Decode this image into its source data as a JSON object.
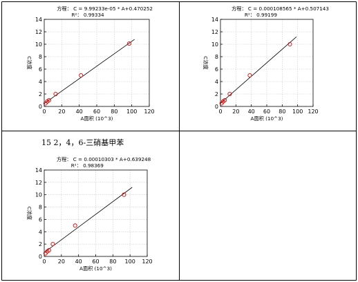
{
  "caption": "15  2，4，6-三硝基甲苯",
  "chart_data": [
    {
      "type": "scatter",
      "equation": "方程： C = 9.99233e-05 * A+0.470252",
      "r2": "R²： 0.99334",
      "xlabel": "A面积 (10^3)",
      "ylabel": "C浓度",
      "xlim": [
        0,
        120
      ],
      "ylim": [
        0,
        14
      ],
      "xticks": [
        "0",
        "20",
        "40",
        "60",
        "80",
        "100",
        "120"
      ],
      "yticks": [
        "0",
        "2",
        "4",
        "6",
        "8",
        "10",
        "12",
        "14"
      ],
      "points": [
        {
          "x": 1.5,
          "y": 0.5
        },
        {
          "x": 3.5,
          "y": 0.8
        },
        {
          "x": 5.5,
          "y": 1.0
        },
        {
          "x": 13,
          "y": 2.0
        },
        {
          "x": 42,
          "y": 5.0
        },
        {
          "x": 97,
          "y": 10.1
        }
      ],
      "fit": {
        "slope": 0.0999233,
        "intercept": 0.470252
      },
      "grid": true
    },
    {
      "type": "scatter",
      "equation": "方程： C = 0.000108565 * A+0.507143",
      "r2": "R²： 0.99199",
      "xlabel": "A面积 (10^3)",
      "ylabel": "C浓度",
      "xlim": [
        0,
        120
      ],
      "ylim": [
        0,
        14
      ],
      "xticks": [
        "0",
        "20",
        "40",
        "60",
        "80",
        "100",
        "120"
      ],
      "yticks": [
        "0",
        "2",
        "4",
        "6",
        "8",
        "10",
        "12",
        "14"
      ],
      "points": [
        {
          "x": 1.5,
          "y": 0.5
        },
        {
          "x": 3.5,
          "y": 0.8
        },
        {
          "x": 5.5,
          "y": 1.0
        },
        {
          "x": 12,
          "y": 2.0
        },
        {
          "x": 38,
          "y": 5.0
        },
        {
          "x": 90,
          "y": 10.0
        }
      ],
      "fit": {
        "slope": 0.108565,
        "intercept": 0.507143
      },
      "grid": true
    },
    {
      "type": "scatter",
      "equation": "方程： C = 0.00010303 * A+0.639248",
      "r2": "R²： 0.98369",
      "xlabel": "A面积 (10^3)",
      "ylabel": "C浓度",
      "xlim": [
        0,
        120
      ],
      "ylim": [
        0,
        14
      ],
      "xticks": [
        "0",
        "20",
        "40",
        "60",
        "80",
        "100",
        "120"
      ],
      "yticks": [
        "0",
        "2",
        "4",
        "6",
        "8",
        "10",
        "12",
        "14"
      ],
      "points": [
        {
          "x": 1.5,
          "y": 0.5
        },
        {
          "x": 3.5,
          "y": 0.8
        },
        {
          "x": 5.5,
          "y": 1.0
        },
        {
          "x": 10,
          "y": 2.0
        },
        {
          "x": 36,
          "y": 5.0
        },
        {
          "x": 93,
          "y": 10.0
        }
      ],
      "fit": {
        "slope": 0.10303,
        "intercept": 0.639248
      },
      "grid": true
    }
  ]
}
